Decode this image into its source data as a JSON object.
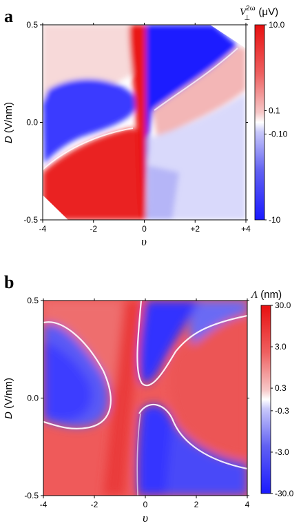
{
  "chart_data": [
    {
      "panel": "a",
      "type": "heatmap",
      "xlabel": "υ",
      "ylabel_var": "D",
      "ylabel_unit": " (V/nm)",
      "xlim": [
        -4,
        4
      ],
      "ylim": [
        -0.5,
        0.5
      ],
      "x_ticks": [
        "-4",
        "-2",
        "0",
        "+2",
        "+4"
      ],
      "x_tick_values": [
        -4,
        -2,
        0,
        2,
        4
      ],
      "y_ticks": [
        "-0.5",
        "0.0",
        "0.5"
      ],
      "y_tick_values": [
        -0.5,
        0,
        0.5
      ],
      "colorbar": {
        "title_var": "V",
        "title_sup": "2ω",
        "title_sub": "⊥",
        "title_unit": " (μV)",
        "scale": "symlog",
        "ticks": [
          "10.0",
          "0.1",
          "-0.10",
          "-10"
        ],
        "tick_values": [
          10,
          0.1,
          -0.1,
          -10
        ],
        "colors": {
          "max": "#e81010",
          "zero": "#ffffff",
          "min": "#1a1aff"
        }
      },
      "features": [
        {
          "region": "upper-left lobe (υ < 0, D > 0)",
          "sign": "negative"
        },
        {
          "region": "lower-left (υ < 0, D < 0)",
          "sign": "positive"
        },
        {
          "region": "upper-right (υ > 0, D > 0)",
          "sign": "negative"
        },
        {
          "region": "lower-right (υ > 0, D < 0)",
          "sign": "mostly weak negative"
        },
        {
          "region": "central vertical stripe (υ ≈ -0.3)",
          "sign": "strong positive"
        },
        {
          "region": "central vertical stripe (υ ≈ +0.3)",
          "sign": "strong negative"
        }
      ]
    },
    {
      "panel": "b",
      "type": "heatmap",
      "xlabel": "υ",
      "ylabel_var": "D",
      "ylabel_unit": " (V/nm)",
      "xlim": [
        -4,
        4
      ],
      "ylim": [
        -0.5,
        0.5
      ],
      "x_ticks": [
        "-4",
        "-2",
        "0",
        "2",
        "4"
      ],
      "x_tick_values": [
        -4,
        -2,
        0,
        2,
        4
      ],
      "y_ticks": [
        "-0.5",
        "0.0",
        "0.5"
      ],
      "y_tick_values": [
        -0.5,
        0,
        0.5
      ],
      "colorbar": {
        "title_var": "Λ",
        "title_unit": " (nm)",
        "scale": "symlog",
        "ticks": [
          "30.0",
          "3.0",
          "0.3",
          "-0.3",
          "-3.0",
          "-30.0"
        ],
        "tick_values": [
          30,
          3,
          0.3,
          -0.3,
          -3,
          -30
        ],
        "colors": {
          "max": "#e81010",
          "zero": "#ffffff",
          "min": "#1a1aff"
        }
      },
      "features": [
        {
          "region": "upper-left lobe (υ < -1, D > -0.15)",
          "sign": "negative"
        },
        {
          "region": "lower-left and central (υ < 0, D < 0)",
          "sign": "positive"
        },
        {
          "region": "upper-center (0 < υ < 1.5, D > 0.1)",
          "sign": "negative"
        },
        {
          "region": "right side (υ > 1)",
          "sign": "positive"
        },
        {
          "region": "lower-center/right (υ > 0, D < -0.05)",
          "sign": "negative"
        }
      ]
    }
  ]
}
